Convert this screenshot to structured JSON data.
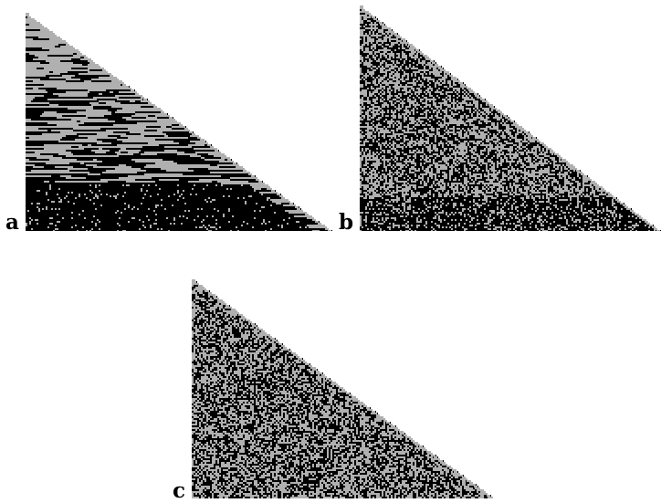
{
  "figure": {
    "colors": {
      "background": "#ffffff",
      "black": "#000000",
      "gray": "#b0b0b0"
    },
    "panels": [
      {
        "label": "a",
        "pattern": "streaks"
      },
      {
        "label": "b",
        "pattern": "mixed"
      },
      {
        "label": "c",
        "pattern": "random"
      }
    ]
  }
}
